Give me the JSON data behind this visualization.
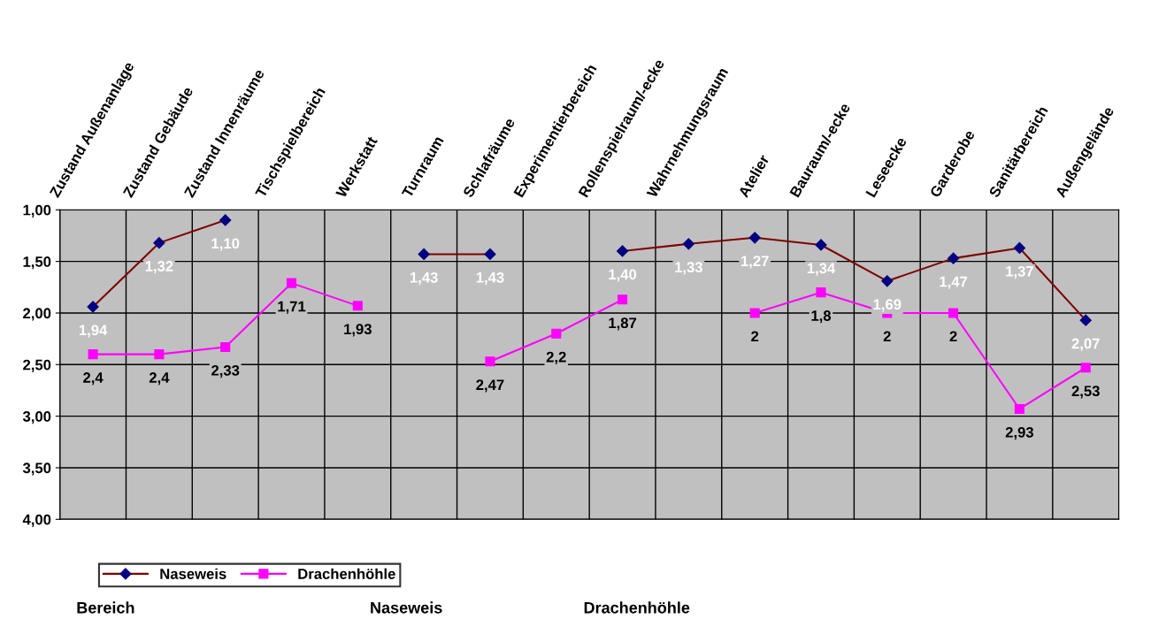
{
  "chart_data": {
    "type": "line",
    "categories": [
      "Zustand Außenanlage",
      "Zustand Gebäude",
      "Zustand Innenräume",
      "Tischspielbereich",
      "Werkstatt",
      "Turnraum",
      "Schlafräume",
      "Experimentierbereich",
      "Rollenspielraum/-ecke",
      "Wahrnehmungsraum",
      "Atelier",
      "Bauraum/-ecke",
      "Leseecke",
      "Garderobe",
      "Sanitärbereich",
      "Außengelände"
    ],
    "series": [
      {
        "name": "Naseweis",
        "color": "#800000",
        "marker": "diamond",
        "values": [
          1.94,
          1.32,
          1.1,
          null,
          null,
          1.43,
          1.43,
          null,
          1.4,
          1.33,
          1.27,
          1.34,
          1.69,
          1.47,
          1.37,
          2.07
        ],
        "value_labels": [
          "1,94",
          "1,32",
          "1,10",
          null,
          null,
          "1,43",
          "1,43",
          null,
          "1,40",
          "1,33",
          "1,27",
          "1,34",
          "1,69",
          "1,47",
          "1,37",
          "2,07"
        ]
      },
      {
        "name": "Drachenhöhle",
        "color": "#ff00ff",
        "marker": "square",
        "values": [
          2.4,
          2.4,
          2.33,
          1.71,
          1.93,
          null,
          2.47,
          2.2,
          1.87,
          null,
          2,
          1.8,
          2,
          2,
          2.93,
          2.53
        ],
        "value_labels": [
          "2,4",
          "2,4",
          "2,33",
          "1,71",
          "1,93",
          null,
          "2,47",
          "2,2",
          "1,87",
          null,
          "2",
          "1,8",
          "2",
          "2",
          "2,93",
          "2,53"
        ]
      }
    ],
    "ylim": [
      4.0,
      1.0
    ],
    "yticks": [
      {
        "value": 1.0,
        "label": "1,00"
      },
      {
        "value": 1.5,
        "label": "1,50"
      },
      {
        "value": 2.0,
        "label": "2,00"
      },
      {
        "value": 2.5,
        "label": "2,50"
      },
      {
        "value": 3.0,
        "label": "3,00"
      },
      {
        "value": 3.5,
        "label": "3,50"
      },
      {
        "value": 4.0,
        "label": "4,00"
      }
    ],
    "grid": true,
    "legend": "bottom left",
    "annotations": [
      "Bereich",
      "Naseweis",
      "Drachenhöhle"
    ]
  }
}
